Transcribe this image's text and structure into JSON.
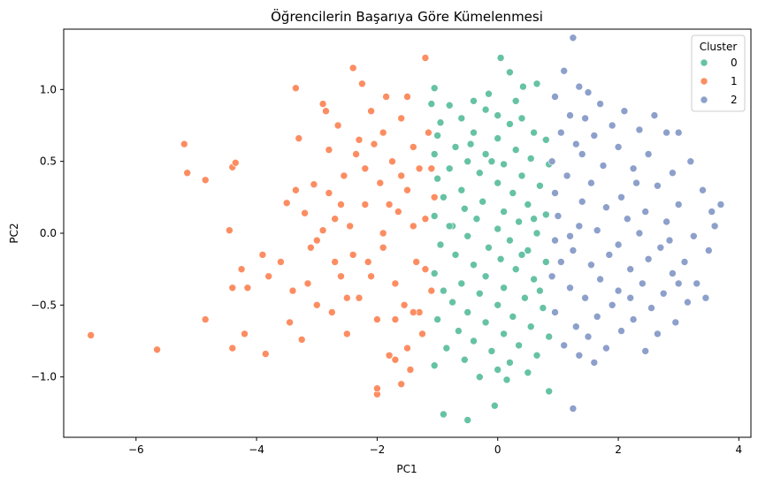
{
  "chart_data": {
    "type": "scatter",
    "title": "Öğrencilerin Başarıya Göre Kümelenmesi",
    "xlabel": "PC1",
    "ylabel": "PC2",
    "xlim": [
      -7.2,
      4.2
    ],
    "ylim": [
      -1.42,
      1.42
    ],
    "x_ticks": [
      -6,
      -4,
      -2,
      0,
      2,
      4
    ],
    "y_ticks": [
      -1.0,
      -0.5,
      0.0,
      0.5,
      1.0
    ],
    "x_tick_labels": [
      "−6",
      "−4",
      "−2",
      "0",
      "2",
      "4"
    ],
    "y_tick_labels": [
      "−1.0",
      "−0.5",
      "0.0",
      "0.5",
      "1.0"
    ],
    "grid": false,
    "legend": {
      "title": "Cluster",
      "position": "top-right"
    },
    "series": [
      {
        "name": "0",
        "color": "#66c2a5",
        "points": [
          [
            0.05,
            1.22
          ],
          [
            0.2,
            1.12
          ],
          [
            0.65,
            1.04
          ],
          [
            0.42,
            1.02
          ],
          [
            -1.05,
            1.01
          ],
          [
            -0.15,
            0.97
          ],
          [
            -0.4,
            0.92
          ],
          [
            0.3,
            0.92
          ],
          [
            -1.1,
            0.9
          ],
          [
            -0.8,
            0.89
          ],
          [
            -0.2,
            0.86
          ],
          [
            0.0,
            0.82
          ],
          [
            -0.6,
            0.8
          ],
          [
            0.4,
            0.8
          ],
          [
            -0.95,
            0.77
          ],
          [
            0.2,
            0.76
          ],
          [
            -0.4,
            0.7
          ],
          [
            0.6,
            0.7
          ],
          [
            -1.0,
            0.68
          ],
          [
            0.0,
            0.66
          ],
          [
            0.8,
            0.65
          ],
          [
            -0.7,
            0.6
          ],
          [
            0.3,
            0.58
          ],
          [
            -0.2,
            0.55
          ],
          [
            -1.05,
            0.55
          ],
          [
            0.55,
            0.52
          ],
          [
            -0.5,
            0.5
          ],
          [
            0.1,
            0.48
          ],
          [
            0.85,
            0.48
          ],
          [
            -0.8,
            0.45
          ],
          [
            -0.3,
            0.42
          ],
          [
            0.4,
            0.4
          ],
          [
            -1.0,
            0.38
          ],
          [
            0.0,
            0.35
          ],
          [
            0.7,
            0.33
          ],
          [
            -0.6,
            0.3
          ],
          [
            0.25,
            0.28
          ],
          [
            -0.9,
            0.25
          ],
          [
            -0.25,
            0.22
          ],
          [
            0.5,
            0.2
          ],
          [
            -0.55,
            0.17
          ],
          [
            0.1,
            0.15
          ],
          [
            0.8,
            0.13
          ],
          [
            -1.05,
            0.12
          ],
          [
            -0.35,
            0.1
          ],
          [
            0.35,
            0.08
          ],
          [
            -0.75,
            0.05
          ],
          [
            0.0,
            0.03
          ],
          [
            0.65,
            0.0
          ],
          [
            -0.5,
            -0.02
          ],
          [
            0.2,
            -0.05
          ],
          [
            -0.95,
            -0.08
          ],
          [
            -0.15,
            -0.1
          ],
          [
            0.5,
            -0.12
          ],
          [
            -0.7,
            -0.15
          ],
          [
            0.05,
            -0.18
          ],
          [
            0.8,
            -0.2
          ],
          [
            -0.4,
            -0.22
          ],
          [
            0.3,
            -0.25
          ],
          [
            -1.05,
            -0.28
          ],
          [
            -0.2,
            -0.3
          ],
          [
            0.6,
            -0.32
          ],
          [
            -0.6,
            -0.35
          ],
          [
            0.1,
            -0.38
          ],
          [
            -0.9,
            -0.4
          ],
          [
            -0.3,
            -0.42
          ],
          [
            0.45,
            -0.45
          ],
          [
            -0.75,
            -0.48
          ],
          [
            0.0,
            -0.5
          ],
          [
            0.75,
            -0.52
          ],
          [
            -0.5,
            -0.55
          ],
          [
            0.25,
            -0.58
          ],
          [
            -1.0,
            -0.6
          ],
          [
            -0.2,
            -0.62
          ],
          [
            0.55,
            -0.65
          ],
          [
            -0.65,
            -0.68
          ],
          [
            0.1,
            -0.7
          ],
          [
            0.85,
            -0.72
          ],
          [
            -0.4,
            -0.75
          ],
          [
            0.35,
            -0.78
          ],
          [
            -0.85,
            -0.8
          ],
          [
            -0.1,
            -0.82
          ],
          [
            0.65,
            -0.85
          ],
          [
            -0.55,
            -0.88
          ],
          [
            0.2,
            -0.9
          ],
          [
            -1.05,
            -0.92
          ],
          [
            0.0,
            -0.95
          ],
          [
            0.5,
            -0.97
          ],
          [
            -0.3,
            -1.0
          ],
          [
            0.15,
            -1.02
          ],
          [
            0.85,
            -1.1
          ],
          [
            -0.9,
            -1.26
          ],
          [
            -0.5,
            -1.3
          ],
          [
            -0.05,
            -1.2
          ],
          [
            -0.8,
            0.05
          ],
          [
            0.7,
            -0.4
          ],
          [
            -0.45,
            0.62
          ],
          [
            0.4,
            -0.15
          ],
          [
            -0.1,
            0.5
          ],
          [
            0.6,
            0.1
          ]
        ]
      },
      {
        "name": "1",
        "color": "#fc8d62",
        "points": [
          [
            -6.75,
            -0.71
          ],
          [
            -5.65,
            -0.81
          ],
          [
            -5.2,
            0.62
          ],
          [
            -5.15,
            0.42
          ],
          [
            -4.85,
            0.37
          ],
          [
            -4.85,
            -0.6
          ],
          [
            -4.45,
            0.02
          ],
          [
            -4.4,
            0.46
          ],
          [
            -4.35,
            0.49
          ],
          [
            -4.4,
            -0.38
          ],
          [
            -4.4,
            -0.8
          ],
          [
            -4.25,
            -0.25
          ],
          [
            -4.2,
            -0.7
          ],
          [
            -4.15,
            -0.38
          ],
          [
            -3.9,
            -0.15
          ],
          [
            -3.85,
            -0.84
          ],
          [
            -3.8,
            -0.3
          ],
          [
            -3.5,
            0.21
          ],
          [
            -3.45,
            -0.62
          ],
          [
            -3.35,
            0.3
          ],
          [
            -3.35,
            1.01
          ],
          [
            -3.3,
            0.66
          ],
          [
            -3.25,
            -0.74
          ],
          [
            -3.2,
            0.14
          ],
          [
            -3.15,
            -0.35
          ],
          [
            -3.1,
            -0.1
          ],
          [
            -3.05,
            0.34
          ],
          [
            -3.0,
            -0.5
          ],
          [
            -3.0,
            -0.05
          ],
          [
            -2.9,
            0.9
          ],
          [
            -2.85,
            0.85
          ],
          [
            -2.8,
            0.28
          ],
          [
            -2.75,
            -0.55
          ],
          [
            -2.7,
            0.1
          ],
          [
            -2.65,
            0.75
          ],
          [
            -2.6,
            -0.3
          ],
          [
            -2.55,
            0.4
          ],
          [
            -2.5,
            -0.7
          ],
          [
            -2.45,
            0.05
          ],
          [
            -2.4,
            1.15
          ],
          [
            -2.35,
            0.55
          ],
          [
            -2.3,
            -0.45
          ],
          [
            -2.25,
            1.04
          ],
          [
            -2.2,
            0.2
          ],
          [
            -2.15,
            -0.2
          ],
          [
            -2.1,
            0.85
          ],
          [
            -2.05,
            0.62
          ],
          [
            -2.0,
            -0.6
          ],
          [
            -1.95,
            0.35
          ],
          [
            -1.9,
            -0.1
          ],
          [
            -1.85,
            0.95
          ],
          [
            -1.8,
            -0.85
          ],
          [
            -1.75,
            0.5
          ],
          [
            -1.7,
            -0.35
          ],
          [
            -1.65,
            0.15
          ],
          [
            -1.6,
            0.8
          ],
          [
            -1.55,
            -0.5
          ],
          [
            -1.5,
            0.3
          ],
          [
            -1.45,
            -0.95
          ],
          [
            -1.4,
            0.6
          ],
          [
            -1.35,
            -0.2
          ],
          [
            -1.3,
            0.45
          ],
          [
            -1.25,
            -0.7
          ],
          [
            -1.2,
            0.1
          ],
          [
            -1.15,
            0.7
          ],
          [
            -1.1,
            -0.4
          ],
          [
            -1.05,
            0.25
          ],
          [
            -1.2,
            1.22
          ],
          [
            -2.0,
            -1.12
          ],
          [
            -2.0,
            -1.08
          ],
          [
            -1.6,
            -1.05
          ],
          [
            -1.7,
            -0.88
          ],
          [
            -1.5,
            -0.8
          ],
          [
            -1.3,
            -0.55
          ],
          [
            -1.9,
            0.0
          ],
          [
            -2.2,
            0.45
          ],
          [
            -2.6,
            0.2
          ],
          [
            -2.9,
            0.02
          ],
          [
            -3.6,
            -0.2
          ],
          [
            -2.4,
            -0.15
          ],
          [
            -1.8,
            0.2
          ],
          [
            -1.4,
            0.05
          ],
          [
            -2.1,
            -0.3
          ],
          [
            -2.7,
            -0.2
          ],
          [
            -1.6,
            0.4
          ],
          [
            -1.2,
            -0.25
          ],
          [
            -2.3,
            0.65
          ],
          [
            -1.9,
            0.7
          ],
          [
            -1.4,
            -0.55
          ],
          [
            -2.5,
            -0.45
          ],
          [
            -1.7,
            -0.6
          ],
          [
            -1.1,
            0.45
          ],
          [
            -3.4,
            -0.4
          ],
          [
            -2.8,
            0.58
          ],
          [
            -1.5,
            0.95
          ]
        ]
      },
      {
        "name": "2",
        "color": "#8da0cb",
        "points": [
          [
            1.25,
            1.36
          ],
          [
            1.1,
            1.13
          ],
          [
            1.35,
            1.02
          ],
          [
            1.5,
            0.98
          ],
          [
            0.95,
            0.95
          ],
          [
            1.7,
            0.9
          ],
          [
            2.1,
            0.85
          ],
          [
            1.2,
            0.82
          ],
          [
            2.6,
            0.82
          ],
          [
            1.45,
            0.8
          ],
          [
            1.9,
            0.75
          ],
          [
            2.35,
            0.72
          ],
          [
            1.05,
            0.7
          ],
          [
            1.6,
            0.68
          ],
          [
            2.8,
            0.7
          ],
          [
            3.0,
            0.7
          ],
          [
            1.3,
            0.62
          ],
          [
            2.0,
            0.6
          ],
          [
            2.5,
            0.55
          ],
          [
            3.2,
            0.5
          ],
          [
            0.9,
            0.5
          ],
          [
            1.75,
            0.47
          ],
          [
            2.25,
            0.45
          ],
          [
            2.9,
            0.42
          ],
          [
            1.15,
            0.4
          ],
          [
            1.55,
            0.35
          ],
          [
            2.65,
            0.33
          ],
          [
            3.4,
            0.3
          ],
          [
            0.95,
            0.28
          ],
          [
            2.05,
            0.25
          ],
          [
            1.4,
            0.22
          ],
          [
            3.0,
            0.2
          ],
          [
            1.8,
            0.18
          ],
          [
            2.45,
            0.15
          ],
          [
            3.55,
            0.15
          ],
          [
            1.0,
            0.12
          ],
          [
            2.15,
            0.1
          ],
          [
            2.8,
            0.08
          ],
          [
            1.35,
            0.05
          ],
          [
            3.7,
            0.2
          ],
          [
            1.65,
            0.02
          ],
          [
            2.35,
            0.0
          ],
          [
            3.25,
            -0.02
          ],
          [
            0.95,
            -0.05
          ],
          [
            2.0,
            -0.08
          ],
          [
            2.7,
            -0.1
          ],
          [
            1.25,
            -0.12
          ],
          [
            3.5,
            -0.12
          ],
          [
            1.85,
            -0.15
          ],
          [
            2.5,
            -0.18
          ],
          [
            1.05,
            -0.2
          ],
          [
            3.1,
            -0.2
          ],
          [
            1.55,
            -0.22
          ],
          [
            2.2,
            -0.25
          ],
          [
            2.9,
            -0.28
          ],
          [
            0.9,
            -0.3
          ],
          [
            1.7,
            -0.32
          ],
          [
            2.4,
            -0.35
          ],
          [
            3.3,
            -0.35
          ],
          [
            1.2,
            -0.38
          ],
          [
            2.0,
            -0.4
          ],
          [
            2.75,
            -0.42
          ],
          [
            1.45,
            -0.45
          ],
          [
            3.15,
            -0.48
          ],
          [
            1.9,
            -0.5
          ],
          [
            2.55,
            -0.52
          ],
          [
            0.95,
            -0.55
          ],
          [
            1.65,
            -0.58
          ],
          [
            2.25,
            -0.6
          ],
          [
            2.95,
            -0.62
          ],
          [
            1.3,
            -0.65
          ],
          [
            2.05,
            -0.68
          ],
          [
            2.65,
            -0.7
          ],
          [
            1.5,
            -0.72
          ],
          [
            1.1,
            -0.78
          ],
          [
            1.8,
            -0.8
          ],
          [
            2.45,
            -0.82
          ],
          [
            1.35,
            -0.85
          ],
          [
            1.6,
            -0.9
          ],
          [
            1.25,
            -1.22
          ],
          [
            3.45,
            -0.45
          ],
          [
            3.6,
            0.05
          ],
          [
            2.3,
            0.35
          ],
          [
            1.4,
            0.55
          ],
          [
            2.85,
            -0.05
          ],
          [
            1.2,
            -0.02
          ],
          [
            3.0,
            -0.35
          ],
          [
            2.2,
            -0.45
          ]
        ]
      }
    ]
  }
}
